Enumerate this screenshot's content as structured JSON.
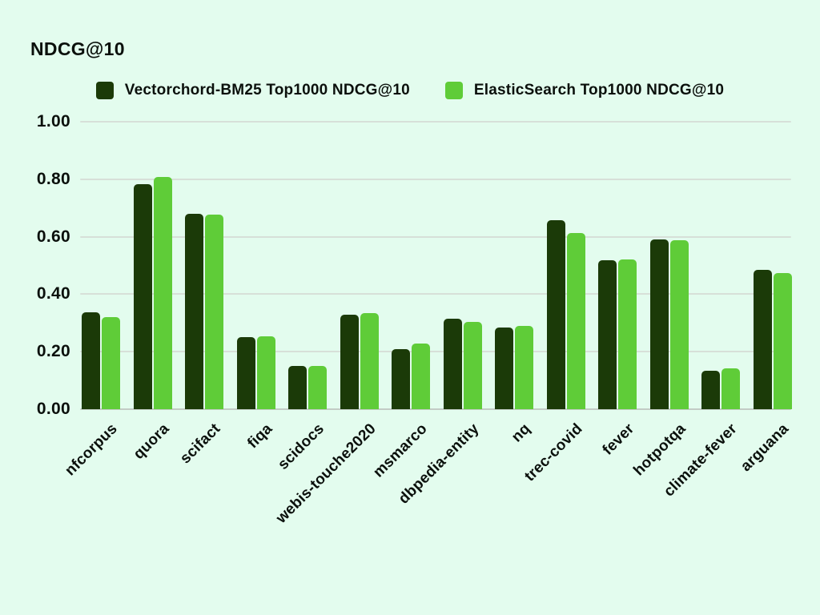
{
  "page": {
    "background": "#e3fcee",
    "text_color": "#0b100c",
    "grid_color": "#d7e0d8",
    "axis_color": "#c3ccc5"
  },
  "chart_data": {
    "type": "bar",
    "title": "NDCG@10",
    "xlabel": "",
    "ylabel": "NDCG@10",
    "ylim": [
      0,
      1
    ],
    "grid": "horizontal",
    "legend_position": "top",
    "y_ticks": [
      "1.00",
      "0.80",
      "0.60",
      "0.40",
      "0.20",
      "0.00"
    ],
    "y_tick_values": [
      1.0,
      0.8,
      0.6,
      0.4,
      0.2,
      0.0
    ],
    "categories": [
      "nfcorpus",
      "quora",
      "scifact",
      "fiqa",
      "scidocs",
      "webis-touche2020",
      "msmarco",
      "dbpedia-entity",
      "nq",
      "trec-covid",
      "fever",
      "hotpotqa",
      "climate-fever",
      "arguana"
    ],
    "series": [
      {
        "name": "Vectorchord-BM25 Top1000 NDCG@10",
        "color": "#1b3a08",
        "values": [
          0.338,
          0.784,
          0.68,
          0.25,
          0.151,
          0.33,
          0.209,
          0.314,
          0.285,
          0.656,
          0.518,
          0.591,
          0.135,
          0.484
        ]
      },
      {
        "name": "ElasticSearch Top1000 NDCG@10",
        "color": "#5fcc38",
        "values": [
          0.321,
          0.808,
          0.677,
          0.254,
          0.15,
          0.335,
          0.228,
          0.305,
          0.29,
          0.613,
          0.521,
          0.587,
          0.142,
          0.473
        ]
      }
    ]
  }
}
